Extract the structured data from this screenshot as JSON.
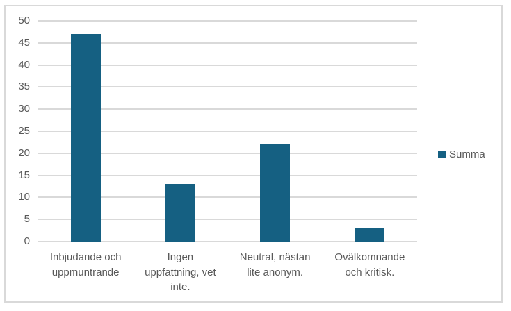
{
  "chart_data": {
    "type": "bar",
    "title": "",
    "xlabel": "",
    "ylabel": "",
    "categories": [
      "Inbjudande och uppmuntrande",
      "Ingen uppfattning, vet inte.",
      "Neutral, nästan lite anonym.",
      "Ovälkomnande och kritisk."
    ],
    "categories_lines": [
      [
        "Inbjudande och",
        "uppmuntrande"
      ],
      [
        "Ingen",
        "uppfattning, vet",
        "inte."
      ],
      [
        "Neutral, nästan",
        "lite anonym."
      ],
      [
        "Ovälkomnande",
        "och kritisk."
      ]
    ],
    "series": [
      {
        "name": "Summa",
        "values": [
          47,
          13,
          22,
          3
        ]
      }
    ],
    "ylim": [
      0,
      50
    ],
    "ytick_step": 5,
    "ytick_labels": [
      "0",
      "5",
      "10",
      "15",
      "20",
      "25",
      "30",
      "35",
      "40",
      "45",
      "50"
    ],
    "grid": true,
    "legend_position": "right",
    "colors": {
      "bar": "#156082",
      "gridline": "#D9D9D9",
      "chart_border": "#D9D9D9",
      "axis_text": "#595959",
      "legend_text": "#595959",
      "background": "#FFFFFF"
    }
  },
  "legend": {
    "label": "Summa"
  }
}
